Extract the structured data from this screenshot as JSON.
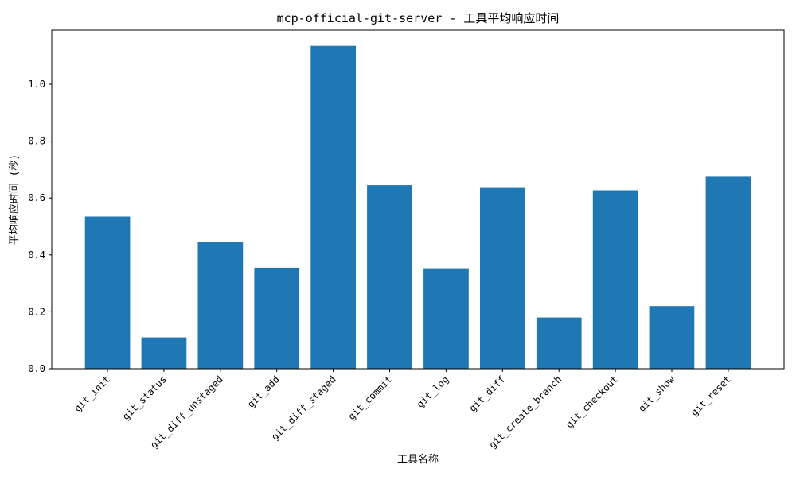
{
  "chart_data": {
    "type": "bar",
    "title": "mcp-official-git-server - 工具平均响应时间",
    "xlabel": "工具名称",
    "ylabel": "平均响应时间 (秒)",
    "categories": [
      "git_init",
      "git_status",
      "git_diff_unstaged",
      "git_add",
      "git_diff_staged",
      "git_commit",
      "git_log",
      "git_diff",
      "git_create_branch",
      "git_checkout",
      "git_show",
      "git_reset"
    ],
    "values": [
      0.535,
      0.11,
      0.445,
      0.355,
      1.135,
      0.645,
      0.353,
      0.638,
      0.18,
      0.627,
      0.22,
      0.675
    ],
    "ylim": [
      0,
      1.19
    ],
    "yticks": [
      0.0,
      0.2,
      0.4,
      0.6,
      0.8,
      1.0
    ],
    "ytick_labels": [
      "0.0",
      "0.2",
      "0.4",
      "0.6",
      "0.8",
      "1.0"
    ],
    "grid": false,
    "legend": "none",
    "bar_color": "#1f77b4"
  }
}
